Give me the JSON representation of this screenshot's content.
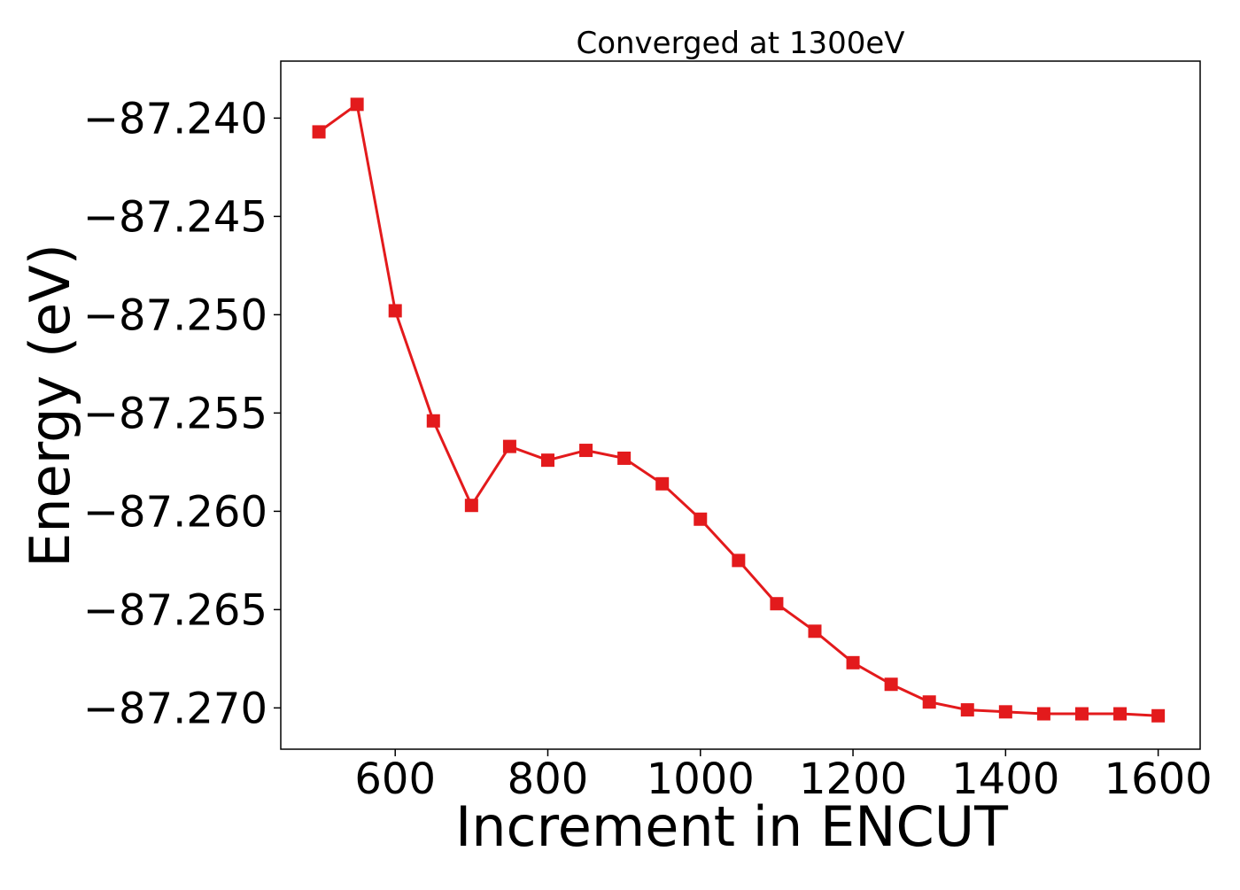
{
  "chart_data": {
    "type": "line",
    "title": "Converged at 1300eV",
    "xlabel": "Increment in ENCUT",
    "ylabel": "Energy (eV)",
    "xlim": [
      450,
      1655
    ],
    "ylim": [
      -87.2721,
      -87.2371
    ],
    "x_ticks": [
      600,
      800,
      1000,
      1200,
      1400,
      1600
    ],
    "x_tick_labels": [
      "600",
      "800",
      "1000",
      "1200",
      "1400",
      "1600"
    ],
    "y_ticks": [
      -87.24,
      -87.245,
      -87.25,
      -87.255,
      -87.26,
      -87.265,
      -87.27
    ],
    "y_tick_labels": [
      "−87.240",
      "−87.245",
      "−87.250",
      "−87.255",
      "−87.260",
      "−87.265",
      "−87.270"
    ],
    "grid": false,
    "series": [
      {
        "color": "#e31a1c",
        "marker": "square",
        "x": [
          500,
          550,
          600,
          650,
          700,
          750,
          800,
          850,
          900,
          950,
          1000,
          1050,
          1100,
          1150,
          1200,
          1250,
          1300,
          1350,
          1400,
          1450,
          1500,
          1550,
          1600
        ],
        "y": [
          -87.2407,
          -87.2393,
          -87.2498,
          -87.2554,
          -87.2597,
          -87.2567,
          -87.2574,
          -87.2569,
          -87.2573,
          -87.2586,
          -87.2604,
          -87.2625,
          -87.2647,
          -87.2661,
          -87.2677,
          -87.2688,
          -87.2697,
          -87.2701,
          -87.2702,
          -87.2703,
          -87.2703,
          -87.2703,
          -87.2704
        ]
      }
    ]
  }
}
